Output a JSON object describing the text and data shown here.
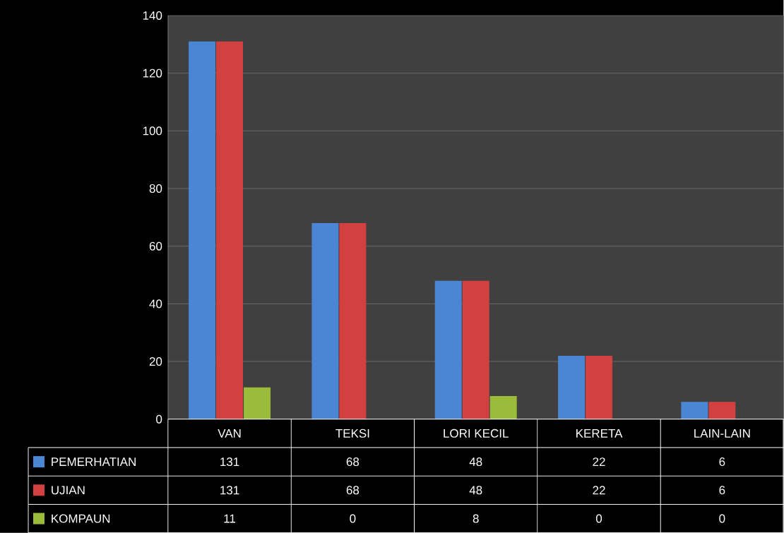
{
  "chart_data": {
    "type": "bar",
    "categories": [
      "VAN",
      "TEKSI",
      "LORI KECIL",
      "KERETA",
      "LAIN-LAIN"
    ],
    "series": [
      {
        "name": "PEMERHATIAN",
        "color": "#4a86d4",
        "values": [
          131,
          68,
          48,
          22,
          6
        ]
      },
      {
        "name": "UJIAN",
        "color": "#d24040",
        "values": [
          131,
          68,
          48,
          22,
          6
        ]
      },
      {
        "name": "KOMPAUN",
        "color": "#9bbb3b",
        "values": [
          11,
          0,
          8,
          0,
          0
        ]
      }
    ],
    "ylim": [
      0,
      140
    ],
    "yticks": [
      0,
      20,
      40,
      60,
      80,
      100,
      120,
      140
    ],
    "grid": "y",
    "legend": "bottom",
    "data_labels": true
  }
}
